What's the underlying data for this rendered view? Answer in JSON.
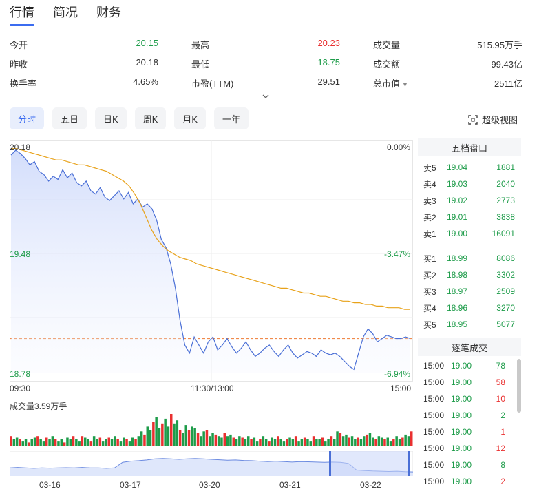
{
  "tabs": [
    {
      "label": "行情",
      "active": true
    },
    {
      "label": "简况",
      "active": false
    },
    {
      "label": "财务",
      "active": false
    }
  ],
  "stats": {
    "open": {
      "label": "今开",
      "value": "20.15"
    },
    "high": {
      "label": "最高",
      "value": "20.23"
    },
    "volume": {
      "label": "成交量",
      "value": "515.95万手"
    },
    "prev_close": {
      "label": "昨收",
      "value": "20.18"
    },
    "low": {
      "label": "最低",
      "value": "18.75"
    },
    "turnover_amount": {
      "label": "成交额",
      "value": "99.43亿"
    },
    "turnover_rate": {
      "label": "换手率",
      "value": "4.65%"
    },
    "pe": {
      "label": "市盈(TTM)",
      "value": "29.51"
    },
    "market_cap": {
      "label": "总市值",
      "value": "2511亿"
    }
  },
  "periods": [
    {
      "label": "分时",
      "active": true
    },
    {
      "label": "五日",
      "active": false
    },
    {
      "label": "日K",
      "active": false
    },
    {
      "label": "周K",
      "active": false
    },
    {
      "label": "月K",
      "active": false
    },
    {
      "label": "一年",
      "active": false
    }
  ],
  "super_view_label": "超级视图",
  "colors": {
    "accent": "#3b6cf0",
    "up": "#e93030",
    "down": "#1e9c4a",
    "price_line": "#4a6fd6",
    "avg_line": "#e8a21a",
    "ref_line": "#f08a4b"
  },
  "chart_axis": {
    "price_top": "20.18",
    "price_mid": "19.48",
    "price_bottom": "18.78",
    "pct_top": "0.00%",
    "pct_mid": "-3.47%",
    "pct_bottom": "-6.94%",
    "time_start": "09:30",
    "time_mid": "11:30/13:00",
    "time_end": "15:00"
  },
  "chart_data": {
    "type": "line",
    "x_label": "",
    "ylim": [
      18.78,
      20.18
    ],
    "reference_price": 18.99,
    "series": [
      {
        "values": [
          20.12,
          20.15,
          20.13,
          20.1,
          20.06,
          20.08,
          20.02,
          20.0,
          19.96,
          19.99,
          19.97,
          20.03,
          19.98,
          20.01,
          19.95,
          19.93,
          19.96,
          19.9,
          19.88,
          19.92,
          19.86,
          19.84,
          19.87,
          19.9,
          19.85,
          19.89,
          19.82,
          19.85,
          19.8,
          19.82,
          19.79,
          19.72,
          19.6,
          19.55,
          19.45,
          19.3,
          19.1,
          18.95,
          18.9,
          19.0,
          18.95,
          18.9,
          18.97,
          19.0,
          18.92,
          18.95,
          18.99,
          18.94,
          18.9,
          18.93,
          18.97,
          18.92,
          18.88,
          18.9,
          18.93,
          18.95,
          18.91,
          18.88,
          18.92,
          18.95,
          18.9,
          18.87,
          18.89,
          18.91,
          18.9,
          18.88,
          18.92,
          18.9,
          18.89,
          18.9,
          18.88,
          18.85,
          18.82,
          18.8,
          18.9,
          19.0,
          19.05,
          19.02,
          18.97,
          18.99,
          19.01,
          19.0,
          18.99,
          18.99,
          19.0,
          18.99
        ]
      },
      {
        "values": [
          20.16,
          20.16,
          20.15,
          20.14,
          20.13,
          20.12,
          20.11,
          20.1,
          20.09,
          20.09,
          20.08,
          20.07,
          20.06,
          20.06,
          20.05,
          20.04,
          20.03,
          20.02,
          20.0,
          19.98,
          19.96,
          19.93,
          19.88,
          19.82,
          19.74,
          19.66,
          19.6,
          19.56,
          19.53,
          19.51,
          19.49,
          19.48,
          19.47,
          19.45,
          19.44,
          19.43,
          19.42,
          19.41,
          19.4,
          19.39,
          19.38,
          19.37,
          19.36,
          19.35,
          19.34,
          19.33,
          19.32,
          19.31,
          19.3,
          19.3,
          19.29,
          19.28,
          19.27,
          19.27,
          19.26,
          19.25,
          19.25,
          19.24,
          19.23,
          19.22,
          19.22,
          19.21,
          19.21,
          19.2,
          19.2,
          19.19,
          19.19,
          19.18,
          19.18,
          19.18,
          19.17,
          19.17
        ]
      }
    ]
  },
  "volume": {
    "title": "成交量3.59万手",
    "bars": [
      0.3,
      0.2,
      0.25,
      0.2,
      0.15,
      0.2,
      0.1,
      0.2,
      0.25,
      0.3,
      0.2,
      0.15,
      0.25,
      0.2,
      0.3,
      0.2,
      0.15,
      0.2,
      0.1,
      0.25,
      0.2,
      0.3,
      0.2,
      0.15,
      0.3,
      0.25,
      0.2,
      0.15,
      0.3,
      0.2,
      0.25,
      0.15,
      0.2,
      0.25,
      0.2,
      0.3,
      0.2,
      0.15,
      0.25,
      0.2,
      0.15,
      0.25,
      0.2,
      0.3,
      0.45,
      0.35,
      0.6,
      0.5,
      0.75,
      0.9,
      0.55,
      0.7,
      0.85,
      0.6,
      1.0,
      0.7,
      0.8,
      0.5,
      0.4,
      0.65,
      0.5,
      0.6,
      0.55,
      0.4,
      0.3,
      0.45,
      0.5,
      0.3,
      0.4,
      0.35,
      0.3,
      0.25,
      0.4,
      0.3,
      0.35,
      0.25,
      0.2,
      0.3,
      0.25,
      0.2,
      0.3,
      0.2,
      0.25,
      0.15,
      0.2,
      0.3,
      0.2,
      0.15,
      0.25,
      0.2,
      0.3,
      0.2,
      0.15,
      0.2,
      0.25,
      0.2,
      0.3,
      0.15,
      0.2,
      0.25,
      0.2,
      0.15,
      0.3,
      0.2,
      0.2,
      0.25,
      0.15,
      0.2,
      0.3,
      0.2,
      0.45,
      0.4,
      0.3,
      0.35,
      0.25,
      0.3,
      0.2,
      0.25,
      0.2,
      0.3,
      0.35,
      0.4,
      0.25,
      0.2,
      0.3,
      0.25,
      0.2,
      0.25,
      0.15,
      0.2,
      0.3,
      0.2,
      0.25,
      0.35,
      0.3,
      0.45
    ],
    "bar_colors": "mixed"
  },
  "navigator": {
    "dates": [
      "03-16",
      "03-17",
      "03-20",
      "03-21",
      "03-22"
    ],
    "line": [
      0.3,
      0.32,
      0.3,
      0.28,
      0.3,
      0.29,
      0.3,
      0.31,
      0.3,
      0.32,
      0.3,
      0.3,
      0.28,
      0.3,
      0.55,
      0.6,
      0.62,
      0.65,
      0.7,
      0.72,
      0.7,
      0.68,
      0.7,
      0.72,
      0.7,
      0.68,
      0.66,
      0.64,
      0.65,
      0.63,
      0.62,
      0.6,
      0.58,
      0.6,
      0.58,
      0.56,
      0.58,
      0.57,
      0.56,
      0.55,
      0.56,
      0.55,
      0.5,
      0.2,
      0.18,
      0.16,
      0.15,
      0.14,
      0.15,
      0.13,
      0.12
    ]
  },
  "order_book": {
    "title": "五档盘口",
    "asks": [
      {
        "label": "卖5",
        "price": "19.04",
        "vol": "1881"
      },
      {
        "label": "卖4",
        "price": "19.03",
        "vol": "2040"
      },
      {
        "label": "卖3",
        "price": "19.02",
        "vol": "2773"
      },
      {
        "label": "卖2",
        "price": "19.01",
        "vol": "3838"
      },
      {
        "label": "卖1",
        "price": "19.00",
        "vol": "16091"
      }
    ],
    "bids": [
      {
        "label": "买1",
        "price": "18.99",
        "vol": "8086"
      },
      {
        "label": "买2",
        "price": "18.98",
        "vol": "3302"
      },
      {
        "label": "买3",
        "price": "18.97",
        "vol": "2509"
      },
      {
        "label": "买4",
        "price": "18.96",
        "vol": "3270"
      },
      {
        "label": "买5",
        "price": "18.95",
        "vol": "5077"
      }
    ]
  },
  "ticks": {
    "title": "逐笔成交",
    "rows": [
      {
        "time": "15:00",
        "price": "19.00",
        "vol": "78",
        "dir": "down"
      },
      {
        "time": "15:00",
        "price": "19.00",
        "vol": "58",
        "dir": "up"
      },
      {
        "time": "15:00",
        "price": "19.00",
        "vol": "10",
        "dir": "up"
      },
      {
        "time": "15:00",
        "price": "19.00",
        "vol": "2",
        "dir": "down"
      },
      {
        "time": "15:00",
        "price": "19.00",
        "vol": "1",
        "dir": "up"
      },
      {
        "time": "15:00",
        "price": "19.00",
        "vol": "12",
        "dir": "up"
      },
      {
        "time": "15:00",
        "price": "19.00",
        "vol": "8",
        "dir": "down"
      },
      {
        "time": "15:00",
        "price": "19.00",
        "vol": "2",
        "dir": "up"
      }
    ]
  }
}
